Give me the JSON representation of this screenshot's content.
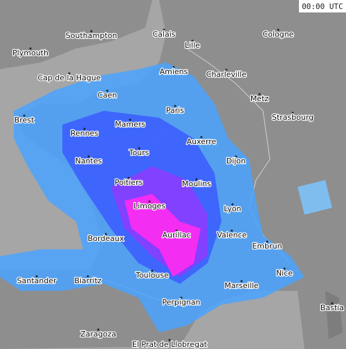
{
  "timestamp": "00:00 UTC",
  "cities": [
    "Southampton",
    "Calais",
    "Lille",
    "Cologne",
    "Plymouth",
    "Amiens",
    "Charleville",
    "Cap de la Hague",
    "Caen",
    "Metz",
    "Paris",
    "Strasbourg",
    "Brest",
    "Mamers",
    "Rennes",
    "Auxerre",
    "Tours",
    "Nantes",
    "Dijon",
    "Poitiers",
    "Moulins",
    "Limoges",
    "Lyon",
    "Valence",
    "Aurillac",
    "Bordeaux",
    "Embrun",
    "Nice",
    "Toulouse",
    "Santander",
    "Biarritz",
    "Marseille",
    "Perpignan",
    "Bastia",
    "Zaragoza",
    "El Prat de Llobregat"
  ]
}
